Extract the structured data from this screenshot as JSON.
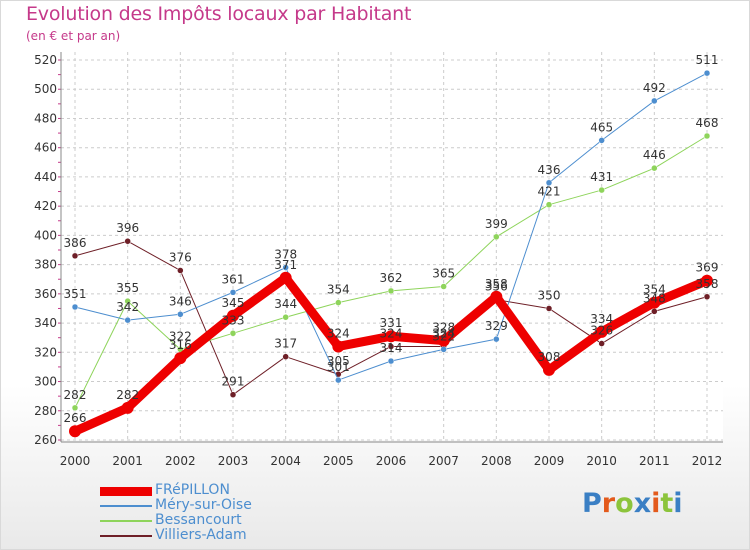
{
  "header": {
    "title": "Evolution des Impôts locaux par Habitant",
    "subtitle": "(en € et par an)"
  },
  "logo": {
    "letters": [
      "P",
      "r",
      "o",
      "x",
      "i",
      "t",
      "i"
    ],
    "colors": [
      "#3a7fc4",
      "#e35a1c",
      "#8cc43c",
      "#3a7fc4",
      "#e35a1c",
      "#8cc43c",
      "#3a7fc4"
    ]
  },
  "chart_data": {
    "type": "line",
    "title": "Evolution des Impôts locaux par Habitant",
    "subtitle": "(en € et par an)",
    "xlabel": "",
    "ylabel": "",
    "x": [
      "2000",
      "2001",
      "2002",
      "2003",
      "2004",
      "2005",
      "2006",
      "2007",
      "2008",
      "2009",
      "2010",
      "2011",
      "2012"
    ],
    "ylim": [
      260,
      520
    ],
    "yticks": [
      260,
      280,
      300,
      320,
      340,
      360,
      380,
      400,
      420,
      440,
      460,
      480,
      500,
      520
    ],
    "grid": true,
    "legend_position": "bottom-left",
    "series": [
      {
        "name": "Villiers-Adam",
        "color": "#6e1f27",
        "line_width": 1,
        "values": [
          386,
          396,
          376,
          291,
          317,
          305,
          324,
          324,
          356,
          350,
          326,
          348,
          358
        ],
        "labels": [
          "386",
          "396",
          "376",
          "291",
          "317",
          "305",
          "324",
          "324",
          "356",
          "350",
          "326",
          "348",
          "358"
        ]
      },
      {
        "name": "Bessancourt",
        "color": "#8ed45b",
        "line_width": 1,
        "values": [
          282,
          355,
          322,
          333,
          344,
          354,
          362,
          365,
          399,
          421,
          431,
          446,
          468
        ],
        "labels": [
          "282",
          "355",
          "322",
          "333",
          "344",
          "354",
          "362",
          "365",
          "399",
          "421",
          "431",
          "446",
          "468"
        ]
      },
      {
        "name": "Méry-sur-Oise",
        "color": "#4d8ecf",
        "line_width": 1,
        "values": [
          351,
          342,
          346,
          361,
          378,
          301,
          314,
          322,
          329,
          436,
          465,
          492,
          511
        ],
        "labels": [
          "351",
          "342",
          "346",
          "361",
          "378",
          "301",
          "314",
          "322",
          "329",
          "436",
          "465",
          "492",
          "511"
        ]
      },
      {
        "name": "FRéPILLON",
        "color": "#ee0000",
        "line_width": 9,
        "values": [
          266,
          282,
          316,
          345,
          371,
          324,
          331,
          328,
          358,
          308,
          334,
          354,
          369
        ],
        "labels": [
          "266",
          "282",
          "316",
          "345",
          "371",
          "324",
          "331",
          "328",
          "358",
          "308",
          "334",
          "354",
          "369"
        ]
      }
    ],
    "legend": [
      {
        "name": "FRéPILLON",
        "color": "#ee0000",
        "swatch": "thick"
      },
      {
        "name": "Méry-sur-Oise",
        "color": "#4d8ecf",
        "swatch": "thin"
      },
      {
        "name": "Bessancourt",
        "color": "#8ed45b",
        "swatch": "thin"
      },
      {
        "name": "Villiers-Adam",
        "color": "#6e1f27",
        "swatch": "thin"
      }
    ]
  }
}
